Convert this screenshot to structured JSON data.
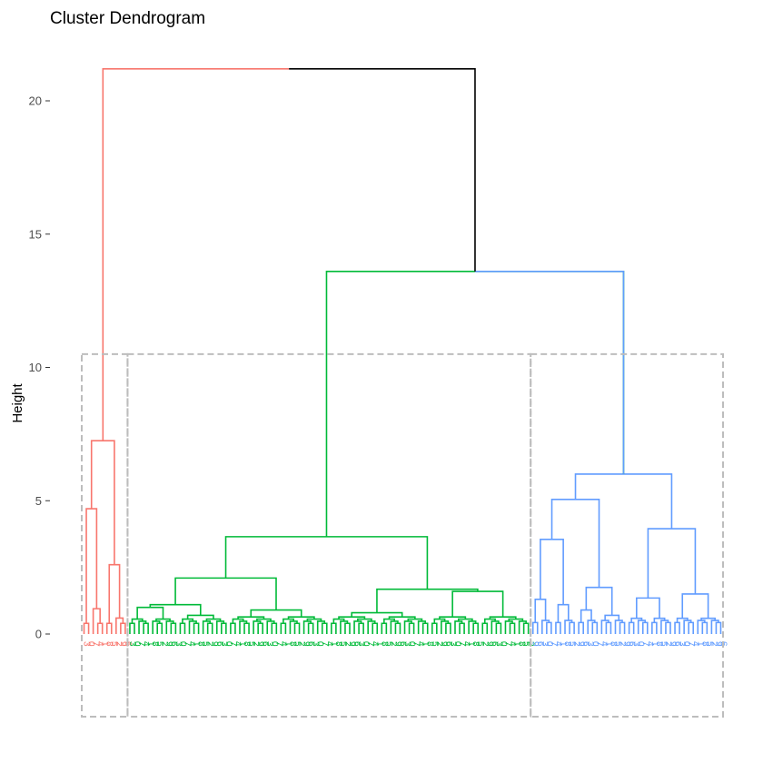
{
  "chart_data": {
    "type": "dendrogram",
    "title": "Cluster Dendrogram",
    "xlabel": "",
    "ylabel": "Height",
    "yticks": [
      0,
      5,
      10,
      15,
      20
    ],
    "ylim": [
      -3.1,
      22.2
    ],
    "grid": false,
    "clusters": [
      {
        "color": "#F8766D",
        "leaf_count": 10,
        "merge_heights": [
          7.25,
          4.7,
          2.6,
          1.1,
          0.95,
          0.9,
          0.6,
          0.5,
          0.4
        ]
      },
      {
        "color": "#00BA38",
        "leaf_count": 88,
        "merge_heights": [
          3.65,
          2.1,
          1.5,
          1.1,
          0.9,
          0.8,
          1.6,
          1.0,
          0.7,
          0.6,
          0.5,
          0.4
        ]
      },
      {
        "color": "#619CFF",
        "leaf_count": 42,
        "merge_heights": [
          6.0,
          5.05,
          3.95,
          3.55,
          1.75,
          1.35,
          1.5,
          1.3,
          1.1,
          0.9,
          0.7,
          0.5
        ]
      }
    ],
    "top_merges": [
      {
        "height": 13.6,
        "children": [
          "cluster-2",
          "cluster-3"
        ],
        "color": "#619CFF"
      },
      {
        "height": 21.2,
        "children": [
          "cluster-1",
          "cluster-2+3"
        ],
        "color": "#000000"
      }
    ],
    "rect_top": 10.5,
    "rect_bottom": -3.1
  }
}
